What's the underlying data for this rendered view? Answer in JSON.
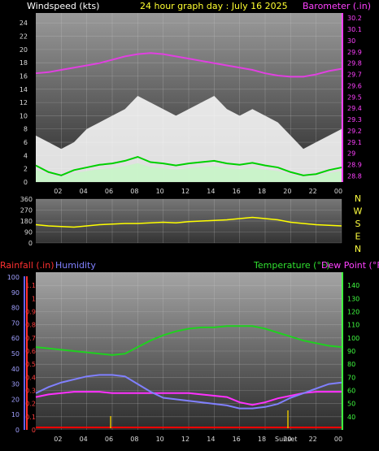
{
  "title": "24 hour graph day : July 16 2025",
  "x_ticks": [
    "02",
    "04",
    "06",
    "08",
    "10",
    "12",
    "14",
    "16",
    "18",
    "20",
    "22",
    "00"
  ],
  "sunset_label": "Sunset",
  "colors": {
    "wind": "#ffffff",
    "gust_fill": "#ffffff",
    "avg_fill": "#c8f5c8",
    "avg_line": "#00d000",
    "pressure": "#e040e0",
    "direction": "#ffff00",
    "temperature": "#20d020",
    "dewpoint": "#ff30ff",
    "humidity": "#8080ff",
    "rainfall": "#ff0000"
  },
  "chart_data": [
    {
      "type": "line",
      "title": "",
      "ylabel_left": "Windspeed (kts)",
      "ylabel_right": "Barometer (.in)",
      "left_ticks": [
        "0",
        "2",
        "4",
        "6",
        "8",
        "10",
        "12",
        "14",
        "16",
        "18",
        "20",
        "22",
        "24"
      ],
      "right_ticks": [
        "28.8",
        "28.9",
        "29",
        "29.1",
        "29.2",
        "29.3",
        "29.4",
        "29.5",
        "29.6",
        "29.7",
        "29.8",
        "29.9",
        "30",
        "30.1",
        "30.2"
      ],
      "ylim_left": [
        0,
        25.5
      ],
      "ylim_right": [
        28.745,
        30.245
      ],
      "x": [
        0,
        1,
        2,
        3,
        4,
        5,
        6,
        7,
        8,
        9,
        10,
        11,
        12,
        13,
        14,
        15,
        16,
        17,
        18,
        19,
        20,
        21,
        22,
        23,
        24
      ],
      "series": [
        {
          "name": "Barometer (.in)",
          "axis": "right",
          "values": [
            29.71,
            29.72,
            29.74,
            29.76,
            29.78,
            29.8,
            29.83,
            29.86,
            29.88,
            29.89,
            29.88,
            29.86,
            29.84,
            29.82,
            29.8,
            29.78,
            29.76,
            29.74,
            29.71,
            29.69,
            29.68,
            29.68,
            29.7,
            29.73,
            29.75
          ]
        },
        {
          "name": "Gust (kts)",
          "axis": "left",
          "values": [
            7,
            6,
            5,
            6,
            8,
            9,
            10,
            11,
            13,
            12,
            11,
            10,
            11,
            12,
            13,
            11,
            10,
            11,
            10,
            9,
            7,
            5,
            6,
            7,
            8
          ]
        },
        {
          "name": "Wind (kts)",
          "axis": "left",
          "values": [
            4,
            3,
            3,
            4,
            5,
            6,
            7,
            8,
            8,
            7,
            7,
            6,
            7,
            8,
            8,
            7,
            6,
            7,
            6,
            5,
            4,
            3,
            3,
            4,
            5
          ]
        },
        {
          "name": "Average (kts)",
          "axis": "left",
          "values": [
            2.5,
            1.5,
            1.0,
            1.8,
            2.2,
            2.6,
            2.8,
            3.2,
            3.8,
            3.0,
            2.8,
            2.5,
            2.8,
            3.0,
            3.2,
            2.8,
            2.6,
            2.9,
            2.5,
            2.2,
            1.5,
            1.0,
            1.2,
            1.8,
            2.2
          ]
        }
      ]
    },
    {
      "type": "line",
      "title": "",
      "left_ticks": [
        "0",
        "90",
        "180",
        "270",
        "360"
      ],
      "right_labels": [
        "N",
        "W",
        "S",
        "E",
        "N"
      ],
      "ylim": [
        0,
        360
      ],
      "x": [
        0,
        1,
        2,
        3,
        4,
        5,
        6,
        7,
        8,
        9,
        10,
        11,
        12,
        13,
        14,
        15,
        16,
        17,
        18,
        19,
        20,
        21,
        22,
        23,
        24
      ],
      "series": [
        {
          "name": "Wind direction",
          "values": [
            150,
            140,
            135,
            130,
            140,
            150,
            155,
            160,
            160,
            165,
            170,
            165,
            175,
            180,
            185,
            190,
            200,
            210,
            200,
            190,
            170,
            160,
            150,
            145,
            140
          ]
        }
      ]
    },
    {
      "type": "line",
      "title": "",
      "legend": [
        "Rainfall (.in)",
        "Humidity",
        "Temperature (°F)",
        "Dew Point (°F)"
      ],
      "left_ticks_rain": [
        "0",
        "0.1",
        "0.2",
        "0.3",
        "0.4",
        "0.5",
        "0.6",
        "0.7",
        "0.8",
        "0.9",
        "1",
        "1.1"
      ],
      "left_ticks_hum": [
        "0",
        "10",
        "20",
        "30",
        "40",
        "50",
        "60",
        "70",
        "80",
        "90",
        "100"
      ],
      "right_ticks": [
        "40",
        "50",
        "60",
        "70",
        "80",
        "90",
        "100",
        "110",
        "120",
        "130",
        "140"
      ],
      "ylim_right": [
        30,
        150
      ],
      "x": [
        0,
        1,
        2,
        3,
        4,
        5,
        6,
        7,
        8,
        9,
        10,
        11,
        12,
        13,
        14,
        15,
        16,
        17,
        18,
        19,
        20,
        21,
        22,
        23,
        24
      ],
      "series": [
        {
          "name": "Temperature (°F)",
          "values": [
            93,
            92,
            91,
            90,
            89,
            88,
            87,
            88,
            93,
            98,
            102,
            105,
            107,
            108,
            108,
            109,
            109,
            109,
            107,
            104,
            101,
            98,
            96,
            94,
            93
          ]
        },
        {
          "name": "Dew Point (°F)",
          "values": [
            55,
            57,
            58,
            59,
            59,
            59,
            58,
            58,
            58,
            58,
            58,
            58,
            58,
            57,
            56,
            55,
            51,
            49,
            51,
            54,
            56,
            58,
            59,
            59,
            59
          ]
        },
        {
          "name": "Humidity",
          "values": [
            24,
            28,
            31,
            33,
            35,
            36,
            36,
            35,
            30,
            25,
            21,
            20,
            19,
            18,
            17,
            16,
            14,
            14,
            15,
            17,
            21,
            24,
            27,
            30,
            31
          ]
        },
        {
          "name": "Rainfall (.in)",
          "values": [
            0,
            0,
            0,
            0,
            0,
            0,
            0,
            0,
            0,
            0,
            0,
            0,
            0,
            0,
            0,
            0,
            0,
            0,
            0,
            0,
            0,
            0,
            0,
            0,
            0
          ]
        }
      ]
    }
  ]
}
